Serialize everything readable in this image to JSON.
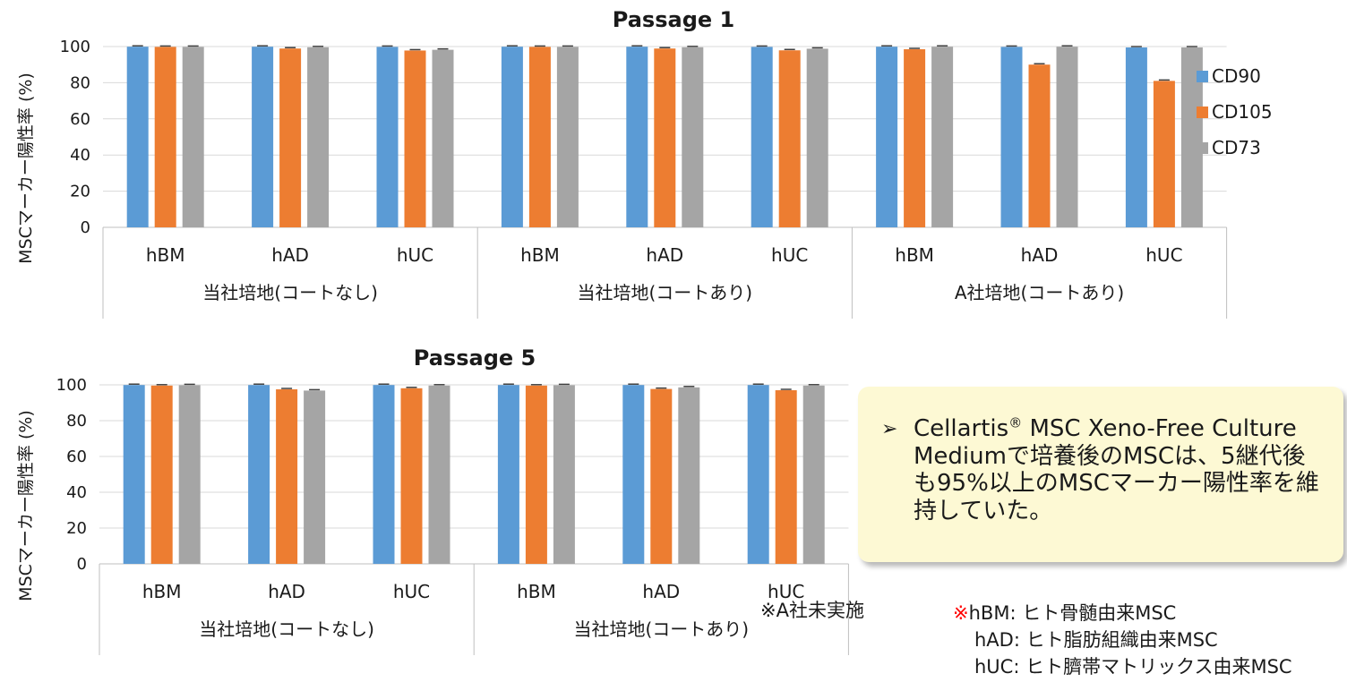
{
  "chart_data": [
    {
      "type": "bar",
      "title": "Passage 1",
      "ylabel": "MSCマーカー陽性率 (%)",
      "ylim": [
        0,
        100
      ],
      "yticks": [
        0,
        20,
        40,
        60,
        80,
        100
      ],
      "grid": true,
      "legend": "right",
      "groups": [
        {
          "label": "当社培地(コートなし)",
          "categories": [
            "hBM",
            "hAD",
            "hUC"
          ]
        },
        {
          "label": "当社培地(コートあり)",
          "categories": [
            "hBM",
            "hAD",
            "hUC"
          ]
        },
        {
          "label": "A社培地(コートあり)",
          "categories": [
            "hBM",
            "hAD",
            "hUC"
          ]
        }
      ],
      "series": [
        {
          "name": "CD90",
          "color": "#5b9bd5",
          "values": [
            99.9,
            99.9,
            99.8,
            99.9,
            99.9,
            99.8,
            99.9,
            99.8,
            99.5
          ]
        },
        {
          "name": "CD105",
          "color": "#ed7d31",
          "values": [
            99.8,
            98.9,
            97.8,
            99.8,
            98.9,
            97.9,
            98.5,
            90.0,
            81.0
          ]
        },
        {
          "name": "CD73",
          "color": "#a5a5a5",
          "values": [
            99.8,
            99.6,
            98.2,
            99.8,
            99.6,
            98.8,
            99.9,
            99.9,
            99.5
          ]
        }
      ]
    },
    {
      "type": "bar",
      "title": "Passage 5",
      "ylabel": "MSCマーカー陽性率 (%)",
      "ylim": [
        0,
        100
      ],
      "yticks": [
        0,
        20,
        40,
        60,
        80,
        100
      ],
      "grid": true,
      "groups": [
        {
          "label": "当社培地(コートなし)",
          "categories": [
            "hBM",
            "hAD",
            "hUC"
          ]
        },
        {
          "label": "当社培地(コートあり)",
          "categories": [
            "hBM",
            "hAD",
            "hUC"
          ]
        }
      ],
      "series": [
        {
          "name": "CD90",
          "color": "#5b9bd5",
          "values": [
            99.9,
            99.9,
            99.9,
            99.9,
            99.9,
            99.9
          ]
        },
        {
          "name": "CD105",
          "color": "#ed7d31",
          "values": [
            99.6,
            97.5,
            98.1,
            99.6,
            97.7,
            97.0
          ]
        },
        {
          "name": "CD73",
          "color": "#a5a5a5",
          "values": [
            99.8,
            96.8,
            99.6,
            99.8,
            98.6,
            99.6
          ]
        }
      ]
    }
  ],
  "callout": {
    "line1_pre": "Cellartis",
    "line1_sup": "®",
    "line1_post": " MSC Xeno-Free Culture Mediumで培養後のMSCは、5継代後も95%以上のMSCマーカー陽性率を維持していた。"
  },
  "footnote_left": "※A社未実施",
  "notes": {
    "mark": "※",
    "hbm": "hBM: ヒト骨髄由来MSC",
    "had": "hAD: ヒト脂肪組織由来MSC",
    "huc": "hUC: ヒト臍帯マトリックス由来MSC"
  }
}
